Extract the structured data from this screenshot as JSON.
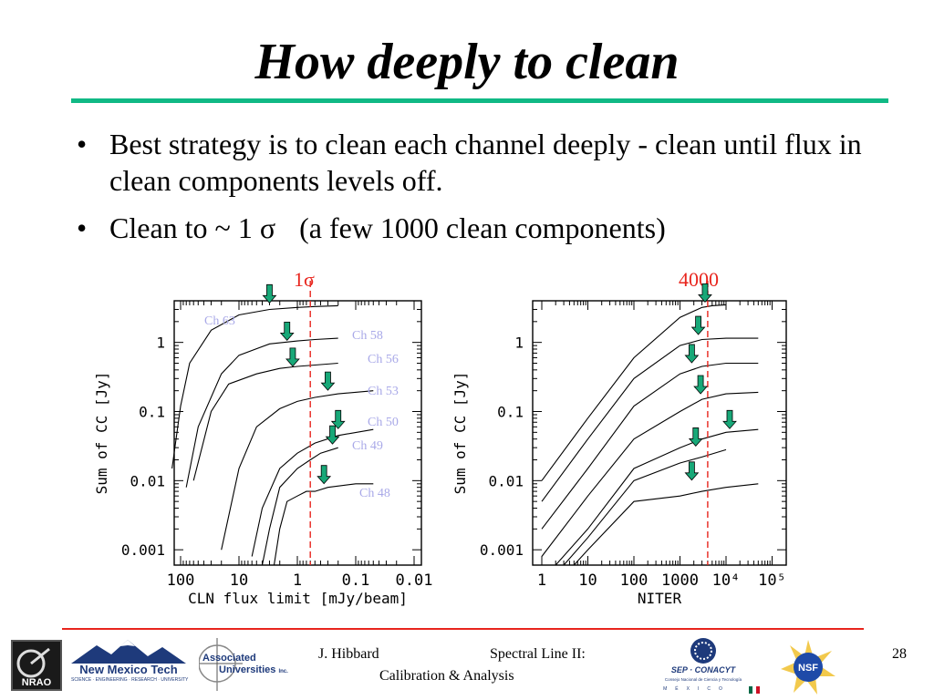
{
  "slide": {
    "title": "How deeply to clean",
    "bullets": [
      "Best strategy is to clean each channel deeply - clean until flux in clean components levels off.",
      "Clean to ~ 1 σ",
      "(a few 1000 clean components)"
    ],
    "bullet_symbol": "•"
  },
  "annotations": {
    "left_marker": "1σ",
    "right_marker": "4000"
  },
  "footer": {
    "author": "J. Hibbard",
    "talk_title_line1": "Spectral Line II:",
    "talk_title_line2": "Calibration & Analysis",
    "page_number": "28"
  },
  "logos": {
    "nmt_name": "New Mexico Tech",
    "nmt_tagline": "SCIENCE · ENGINEERING · RESEARCH · UNIVERSITY",
    "au_line1": "Associated",
    "au_line2": "Universities",
    "au_inc": "Inc.",
    "conacyt_name": "SEP · CONACYT",
    "conacyt_sub": "Consejo Nacional de Ciencia y Tecnología",
    "conacyt_country": "MÉXICO",
    "nrao_text": "NRAO",
    "nsf_text": "NSF"
  },
  "colors": {
    "rule": "#10b985",
    "accent": "#e8251d",
    "channel_label": "#a9a9e8",
    "arrow_fill": "#18a878",
    "ink": "#000000"
  },
  "chart_data": [
    {
      "type": "line",
      "xlabel": "CLN flux limit [mJy/beam]",
      "ylabel": "Sum of CC [Jy]",
      "x_scale": "log",
      "x_reversed": true,
      "xlim": [
        100,
        0.01
      ],
      "y_scale": "log",
      "ylim": [
        0.0006,
        4
      ],
      "x_ticks": [
        "100",
        "10",
        "1",
        "0.1",
        "0.01"
      ],
      "y_ticks": [
        "1",
        "0.1",
        "0.01",
        "0.001"
      ],
      "marker_line": {
        "x": 0.6,
        "label": "1σ"
      },
      "series": [
        {
          "name": "Ch 63",
          "x": [
            140,
            100,
            70,
            30,
            10,
            3,
            1,
            0.5,
            0.2
          ],
          "y": [
            0.015,
            0.12,
            0.5,
            1.5,
            2.5,
            3.0,
            3.2,
            3.3,
            3.4
          ]
        },
        {
          "name": "Ch 58",
          "x": [
            80,
            50,
            20,
            10,
            3,
            1,
            0.5,
            0.2
          ],
          "y": [
            0.008,
            0.06,
            0.35,
            0.65,
            0.95,
            1.05,
            1.1,
            1.15
          ]
        },
        {
          "name": "Ch 56",
          "x": [
            60,
            30,
            15,
            5,
            2,
            1,
            0.5,
            0.2
          ],
          "y": [
            0.01,
            0.1,
            0.25,
            0.35,
            0.42,
            0.45,
            0.47,
            0.5
          ]
        },
        {
          "name": "Ch 53",
          "x": [
            20,
            10,
            5,
            2,
            1,
            0.5,
            0.2,
            0.05
          ],
          "y": [
            0.001,
            0.015,
            0.06,
            0.11,
            0.14,
            0.16,
            0.18,
            0.2
          ]
        },
        {
          "name": "Ch 50",
          "x": [
            6,
            4,
            2,
            1,
            0.5,
            0.2,
            0.05
          ],
          "y": [
            0.0008,
            0.004,
            0.015,
            0.025,
            0.035,
            0.045,
            0.055
          ]
        },
        {
          "name": "Ch 49",
          "x": [
            4,
            3,
            2,
            1,
            0.6,
            0.4,
            0.2
          ],
          "y": [
            0.0006,
            0.002,
            0.008,
            0.015,
            0.02,
            0.025,
            0.03
          ]
        },
        {
          "name": "Ch 48",
          "x": [
            2.5,
            2,
            1.5,
            1,
            0.7,
            0.5,
            0.3,
            0.1,
            0.05
          ],
          "y": [
            0.0006,
            0.002,
            0.005,
            0.006,
            0.007,
            0.007,
            0.008,
            0.009,
            0.009
          ]
        }
      ],
      "arrows": [
        [
          3,
          3.3
        ],
        [
          1.5,
          0.95
        ],
        [
          1.2,
          0.4
        ],
        [
          0.3,
          0.18
        ],
        [
          0.2,
          0.05
        ],
        [
          0.25,
          0.03
        ],
        [
          0.35,
          0.008
        ]
      ]
    },
    {
      "type": "line",
      "xlabel": "NITER",
      "ylabel": "Sum of CC [Jy]",
      "x_scale": "log",
      "xlim": [
        1,
        100000
      ],
      "y_scale": "log",
      "ylim": [
        0.0006,
        4
      ],
      "x_ticks": [
        "1",
        "10",
        "100",
        "1000",
        "10⁴",
        "10⁵"
      ],
      "y_ticks": [
        "1",
        "0.1",
        "0.01",
        "0.001"
      ],
      "marker_line": {
        "x": 4000,
        "label": "4000"
      },
      "series": [
        {
          "name": "Ch 63",
          "x": [
            1,
            10,
            100,
            1000,
            3000,
            5000,
            10000
          ],
          "y": [
            0.01,
            0.08,
            0.6,
            2.3,
            3.2,
            3.4,
            3.5
          ]
        },
        {
          "name": "Ch 58",
          "x": [
            1,
            10,
            100,
            1000,
            3000,
            10000,
            50000
          ],
          "y": [
            0.005,
            0.04,
            0.3,
            0.9,
            1.1,
            1.15,
            1.15
          ]
        },
        {
          "name": "Ch 56",
          "x": [
            1,
            10,
            100,
            1000,
            3000,
            10000,
            50000
          ],
          "y": [
            0.002,
            0.015,
            0.12,
            0.35,
            0.45,
            0.5,
            0.5
          ]
        },
        {
          "name": "Ch 53",
          "x": [
            1,
            10,
            100,
            1000,
            3000,
            10000,
            50000
          ],
          "y": [
            0.0008,
            0.006,
            0.04,
            0.1,
            0.15,
            0.18,
            0.19
          ]
        },
        {
          "name": "Ch 50",
          "x": [
            2,
            10,
            100,
            1000,
            3000,
            10000,
            50000
          ],
          "y": [
            0.0006,
            0.002,
            0.015,
            0.03,
            0.04,
            0.05,
            0.055
          ]
        },
        {
          "name": "Ch 49",
          "x": [
            3,
            10,
            100,
            1000,
            3000,
            10000
          ],
          "y": [
            0.0006,
            0.0015,
            0.01,
            0.018,
            0.022,
            0.028
          ]
        },
        {
          "name": "Ch 48",
          "x": [
            5,
            10,
            100,
            1000,
            3000,
            10000,
            50000
          ],
          "y": [
            0.0006,
            0.001,
            0.005,
            0.006,
            0.007,
            0.008,
            0.009
          ]
        }
      ],
      "arrows": [
        [
          3500,
          3.4
        ],
        [
          2500,
          1.15
        ],
        [
          1800,
          0.45
        ],
        [
          2800,
          0.16
        ],
        [
          12000,
          0.05
        ],
        [
          2200,
          0.028
        ],
        [
          1800,
          0.009
        ]
      ]
    }
  ]
}
